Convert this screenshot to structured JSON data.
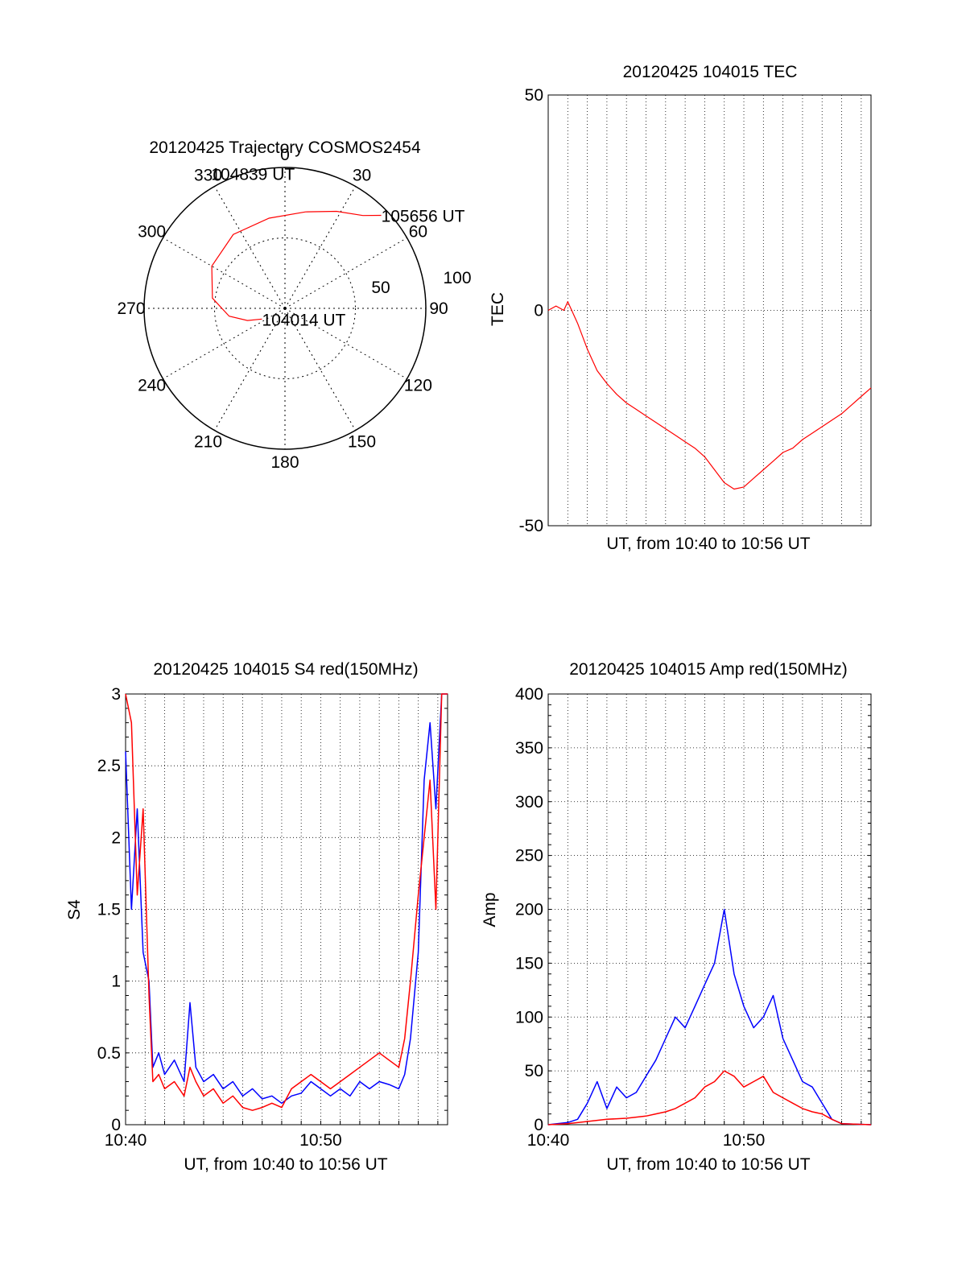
{
  "chart_data": [
    {
      "type": "polar",
      "title": "20120425 Trajectory COSMOS2454",
      "angle_labels": [
        "0",
        "30",
        "60",
        "90",
        "120",
        "150",
        "180",
        "210",
        "240",
        "270",
        "300",
        "330"
      ],
      "radius_labels": [
        "50",
        "100"
      ],
      "r_max": 100,
      "trajectory": {
        "color": "#ff0000",
        "points": [
          {
            "az": 245,
            "el": 18
          },
          {
            "az": 252,
            "el": 28
          },
          {
            "az": 262,
            "el": 40
          },
          {
            "az": 278,
            "el": 52
          },
          {
            "az": 300,
            "el": 60
          },
          {
            "az": 325,
            "el": 64
          },
          {
            "az": 350,
            "el": 65
          },
          {
            "az": 12,
            "el": 70
          },
          {
            "az": 28,
            "el": 78
          },
          {
            "az": 40,
            "el": 86
          },
          {
            "az": 46,
            "el": 95
          }
        ]
      },
      "annotations": [
        {
          "text": "105656 UT",
          "az": 46,
          "el": 95
        },
        {
          "text": "104839 UT",
          "az": 340,
          "el": 58
        },
        {
          "text": "104014 UT",
          "az": 245,
          "el": 18
        }
      ]
    },
    {
      "type": "line",
      "title": "20120425 104015 TEC",
      "xlabel": "UT, from 10:40 to 10:56 UT",
      "ylabel": "TEC",
      "xlim": [
        0,
        16.5
      ],
      "ylim": [
        -50,
        50
      ],
      "yticks": [
        "50",
        "0",
        "-50"
      ],
      "ytick_values": [
        50,
        0,
        -50
      ],
      "grid": true,
      "series": [
        {
          "color": "#ff0000",
          "x": [
            0,
            0.4,
            0.8,
            1.0,
            1.2,
            1.5,
            2,
            2.5,
            3,
            3.5,
            4,
            4.5,
            5,
            5.5,
            6,
            6.5,
            7,
            7.5,
            8,
            8.5,
            9,
            9.5,
            10,
            10.5,
            11,
            11.5,
            12,
            12.5,
            13,
            13.5,
            14,
            14.5,
            15,
            15.5,
            16,
            16.5
          ],
          "y": [
            0,
            1,
            0,
            2,
            0,
            -3,
            -9,
            -14,
            -17,
            -19.5,
            -21.5,
            -23,
            -24.5,
            -26,
            -27.5,
            -29,
            -30.5,
            -32,
            -34,
            -37,
            -40,
            -41.5,
            -41,
            -39,
            -37,
            -35,
            -33,
            -32,
            -30,
            -28.5,
            -27,
            -25.5,
            -24,
            -22,
            -20,
            -18
          ]
        }
      ]
    },
    {
      "type": "line",
      "title": "20120425 104015 S4 red(150MHz)",
      "xlabel": "UT, from 10:40 to 10:56 UT",
      "ylabel": "S4",
      "xlim": [
        0,
        16.5
      ],
      "ylim": [
        0,
        3
      ],
      "xticks": [
        "10:40",
        "10:50"
      ],
      "xtick_values": [
        0,
        10
      ],
      "yticks": [
        "0",
        "0.5",
        "1",
        "1.5",
        "2",
        "2.5",
        "3"
      ],
      "ytick_values": [
        0,
        0.5,
        1,
        1.5,
        2,
        2.5,
        3
      ],
      "grid": true,
      "series": [
        {
          "color": "#0000ff",
          "x": [
            0,
            0.3,
            0.6,
            0.9,
            1.2,
            1.4,
            1.7,
            2,
            2.5,
            3,
            3.3,
            3.6,
            4,
            4.5,
            5,
            5.5,
            6,
            6.5,
            7,
            7.5,
            8,
            8.5,
            9,
            9.5,
            10,
            10.5,
            11,
            11.5,
            12,
            12.5,
            13,
            13.5,
            14,
            14.3,
            14.6,
            15,
            15.3,
            15.6,
            15.9,
            16.2,
            16.5
          ],
          "y": [
            2.6,
            1.5,
            2.2,
            1.2,
            1.0,
            0.4,
            0.5,
            0.35,
            0.45,
            0.3,
            0.85,
            0.4,
            0.3,
            0.35,
            0.25,
            0.3,
            0.2,
            0.25,
            0.18,
            0.2,
            0.15,
            0.2,
            0.22,
            0.3,
            0.25,
            0.2,
            0.25,
            0.2,
            0.3,
            0.25,
            0.3,
            0.28,
            0.25,
            0.35,
            0.6,
            1.2,
            2.4,
            2.8,
            2.2,
            3.0,
            3.0
          ]
        },
        {
          "color": "#ff0000",
          "x": [
            0,
            0.3,
            0.6,
            0.9,
            1.2,
            1.4,
            1.7,
            2,
            2.5,
            3,
            3.3,
            3.6,
            4,
            4.5,
            5,
            5.5,
            6,
            6.5,
            7,
            7.5,
            8,
            8.5,
            9,
            9.5,
            10,
            10.5,
            11,
            11.5,
            12,
            12.5,
            13,
            13.5,
            14,
            14.3,
            14.6,
            15,
            15.3,
            15.6,
            15.9,
            16.2,
            16.5
          ],
          "y": [
            3.0,
            2.8,
            1.6,
            2.2,
            0.9,
            0.3,
            0.35,
            0.25,
            0.3,
            0.2,
            0.4,
            0.3,
            0.2,
            0.25,
            0.15,
            0.2,
            0.12,
            0.1,
            0.12,
            0.15,
            0.12,
            0.25,
            0.3,
            0.35,
            0.3,
            0.25,
            0.3,
            0.35,
            0.4,
            0.45,
            0.5,
            0.45,
            0.4,
            0.6,
            1.0,
            1.6,
            2.0,
            2.4,
            1.5,
            3.0,
            3.0
          ]
        }
      ]
    },
    {
      "type": "line",
      "title": "20120425 104015 Amp red(150MHz)",
      "xlabel": "UT, from 10:40 to 10:56 UT",
      "ylabel": "Amp",
      "xlim": [
        0,
        16.5
      ],
      "ylim": [
        0,
        400
      ],
      "xticks": [
        "10:40",
        "10:50"
      ],
      "xtick_values": [
        0,
        10
      ],
      "yticks": [
        "0",
        "50",
        "100",
        "150",
        "200",
        "250",
        "300",
        "350",
        "400"
      ],
      "ytick_values": [
        0,
        50,
        100,
        150,
        200,
        250,
        300,
        350,
        400
      ],
      "grid": true,
      "series": [
        {
          "color": "#0000ff",
          "x": [
            0,
            1,
            1.5,
            2,
            2.5,
            3,
            3.5,
            4,
            4.5,
            5,
            5.5,
            6,
            6.5,
            7,
            7.5,
            8,
            8.5,
            9,
            9.5,
            10,
            10.5,
            11,
            11.5,
            12,
            12.5,
            13,
            13.5,
            14,
            14.5,
            15,
            16.5
          ],
          "y": [
            0,
            2,
            5,
            20,
            40,
            15,
            35,
            25,
            30,
            45,
            60,
            80,
            100,
            90,
            110,
            130,
            150,
            200,
            140,
            110,
            90,
            100,
            120,
            80,
            60,
            40,
            35,
            20,
            5,
            1,
            0
          ]
        },
        {
          "color": "#ff0000",
          "x": [
            0,
            1,
            2,
            3,
            4,
            5,
            5.5,
            6,
            6.5,
            7,
            7.5,
            8,
            8.5,
            9,
            9.5,
            10,
            10.5,
            11,
            11.5,
            12,
            12.5,
            13,
            13.5,
            14,
            14.5,
            15,
            16.5
          ],
          "y": [
            0,
            1,
            3,
            5,
            6,
            8,
            10,
            12,
            15,
            20,
            25,
            35,
            40,
            50,
            45,
            35,
            40,
            45,
            30,
            25,
            20,
            15,
            12,
            10,
            5,
            1,
            0
          ]
        }
      ]
    }
  ]
}
